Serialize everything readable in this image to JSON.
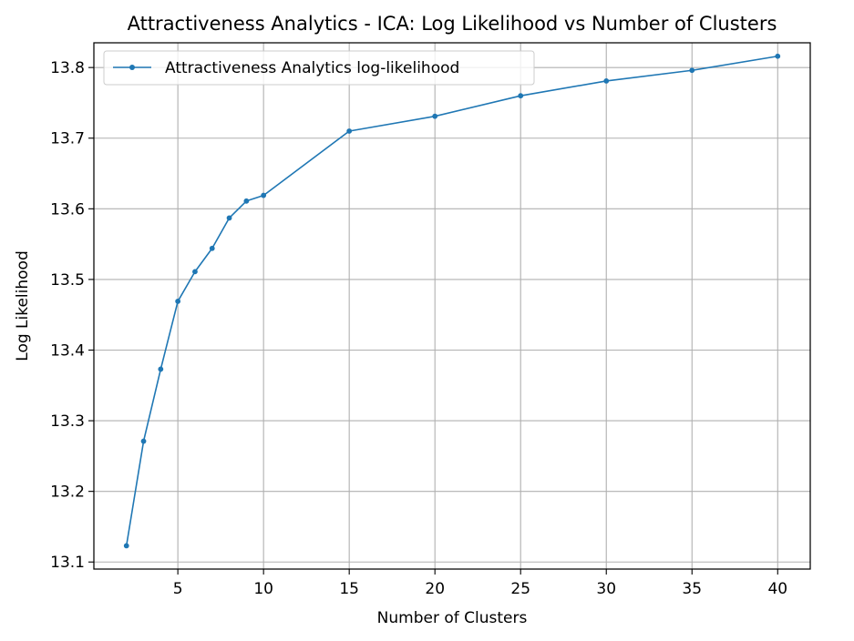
{
  "chart_data": {
    "type": "line",
    "title": "Attractiveness Analytics - ICA: Log Likelihood vs Number of Clusters",
    "xlabel": "Number of Clusters",
    "ylabel": "Log Likelihood",
    "xlim": [
      0.1,
      41.9
    ],
    "ylim": [
      13.09,
      13.835
    ],
    "xticks": [
      5,
      10,
      15,
      20,
      25,
      30,
      35,
      40
    ],
    "yticks": [
      13.1,
      13.2,
      13.3,
      13.4,
      13.5,
      13.6,
      13.7,
      13.8
    ],
    "grid": true,
    "legend_position": "top-left",
    "series": [
      {
        "name": "Attractiveness Analytics log-likelihood",
        "color": "#1f77b4",
        "marker": "circle",
        "x": [
          2,
          3,
          4,
          5,
          6,
          7,
          8,
          9,
          10,
          15,
          20,
          25,
          30,
          35,
          40
        ],
        "y": [
          13.123,
          13.271,
          13.373,
          13.469,
          13.511,
          13.544,
          13.587,
          13.611,
          13.619,
          13.71,
          13.731,
          13.76,
          13.781,
          13.796,
          13.816
        ]
      }
    ]
  }
}
